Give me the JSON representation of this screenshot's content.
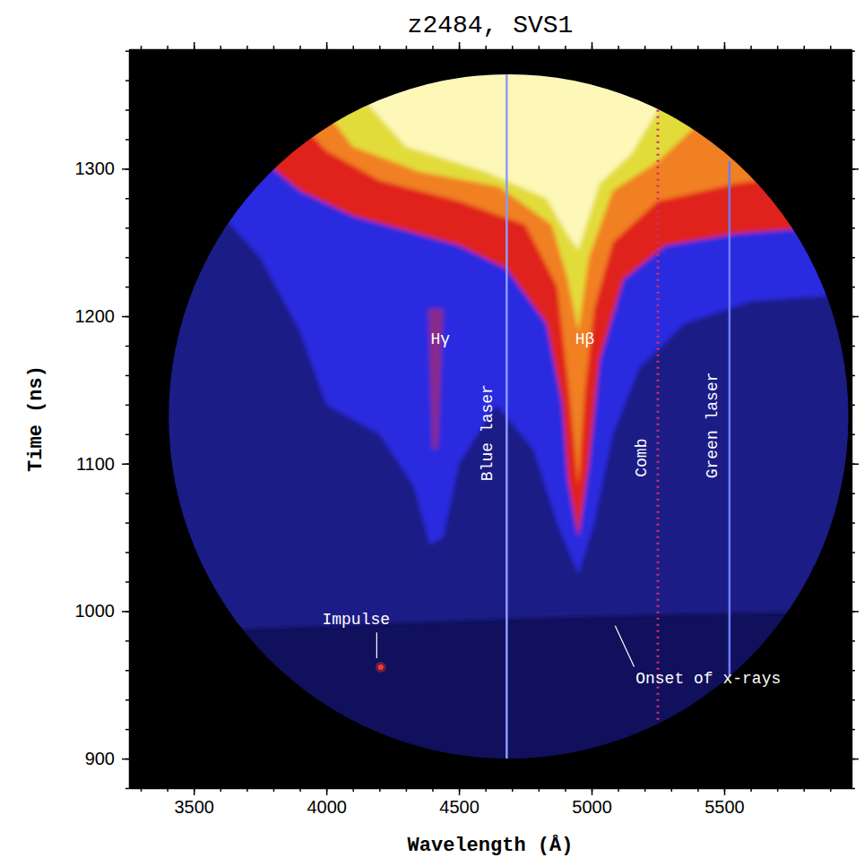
{
  "chart_data": {
    "type": "streak",
    "title": "z2484, SVS1",
    "x_label": "Wavelength (Å)",
    "y_label": "Time (ns)",
    "xlim": [
      3256,
      5980
    ],
    "ylim": [
      880,
      1381
    ],
    "xticks": [
      3500,
      4000,
      4500,
      5000,
      5500
    ],
    "yticks": [
      900,
      1000,
      1100,
      1200,
      1300
    ],
    "xticks_minor": [
      3300,
      3400,
      3500,
      3600,
      3700,
      3800,
      3900,
      4000,
      4100,
      4200,
      4300,
      4400,
      4500,
      4600,
      4700,
      4800,
      4900,
      5000,
      5100,
      5200,
      5300,
      5400,
      5500,
      5600,
      5700,
      5800,
      5900
    ],
    "yticks_minor": [
      880,
      900,
      920,
      940,
      960,
      980,
      1000,
      1020,
      1040,
      1060,
      1080,
      1100,
      1120,
      1140,
      1160,
      1180,
      1200,
      1220,
      1240,
      1260,
      1280,
      1300,
      1320,
      1340,
      1360,
      1380
    ],
    "aperture": {
      "center": [
        4687,
        1132
      ],
      "radius": [
        1281,
        232
      ],
      "color": "#10105c"
    },
    "regions": [
      {
        "color": "#1b1b86",
        "x": [
          3256,
          4000,
          4700,
          5300,
          5980,
          5980,
          3256
        ],
        "y": [
          985,
          990,
          995,
          998,
          1000,
          1381,
          1381
        ]
      },
      {
        "color": "#2a2ae0",
        "x": [
          4950,
          5010,
          5080,
          5180,
          5350,
          5600,
          5980,
          5980,
          3256,
          3256,
          3550,
          3750,
          3900,
          4000,
          4200,
          4330,
          4390,
          4440,
          4500,
          4640,
          4780,
          4870
        ],
        "y": [
          1025,
          1060,
          1120,
          1165,
          1195,
          1210,
          1215,
          1381,
          1381,
          1310,
          1280,
          1240,
          1190,
          1140,
          1120,
          1085,
          1045,
          1050,
          1100,
          1140,
          1110,
          1060
        ]
      },
      {
        "color": "#8a2a8a",
        "x": [
          4385,
          4400,
          4420,
          4440
        ],
        "y": [
          1205,
          1110,
          1110,
          1205
        ]
      },
      {
        "color": "#e0241c",
        "x": [
          4950,
          4990,
          5030,
          5120,
          5280,
          5550,
          5980,
          5980,
          3256,
          3256,
          3700,
          3900,
          4100,
          4300,
          4500,
          4680,
          4830,
          4890,
          4910
        ],
        "y": [
          1050,
          1100,
          1170,
          1225,
          1248,
          1256,
          1262,
          1381,
          1381,
          1345,
          1315,
          1285,
          1268,
          1258,
          1248,
          1232,
          1195,
          1140,
          1090
        ]
      },
      {
        "color": "#f08020",
        "x": [
          4950,
          4975,
          5010,
          5080,
          5250,
          5550,
          5980,
          5980,
          3600,
          3800,
          4000,
          4200,
          4500,
          4750,
          4870,
          4915
        ],
        "y": [
          1085,
          1150,
          1205,
          1250,
          1278,
          1290,
          1300,
          1381,
          1381,
          1350,
          1312,
          1292,
          1278,
          1262,
          1220,
          1150
        ]
      },
      {
        "color": "#e2dc3a",
        "x": [
          4950,
          4990,
          5080,
          5250,
          5400,
          5450,
          3900,
          3950,
          4100,
          4350,
          4650,
          4850,
          4910
        ],
        "y": [
          1190,
          1240,
          1285,
          1305,
          1330,
          1381,
          1381,
          1350,
          1315,
          1298,
          1288,
          1262,
          1225
        ]
      },
      {
        "color": "#fdf8b8",
        "x": [
          4950,
          5030,
          5150,
          5250,
          5300,
          4100,
          4150,
          4300,
          4600,
          4830,
          4910
        ],
        "y": [
          1245,
          1290,
          1310,
          1340,
          1381,
          1381,
          1345,
          1315,
          1298,
          1280,
          1255
        ]
      }
    ],
    "lines": [
      {
        "name": "Blue laser",
        "x": 4680,
        "y": [
          898,
          1368
        ],
        "color": "#8a9cff",
        "line_style": "solid",
        "label_x": 4609,
        "label_y": 1121
      },
      {
        "name": "Comb",
        "x": 5250,
        "y": [
          922,
          1352
        ],
        "color": "#d0306a",
        "line_style": "dotted",
        "label_x": 5189,
        "label_y": 1104
      },
      {
        "name": "Green laser",
        "x": 5520,
        "y": [
          935,
          1305
        ],
        "color": "#6d7dff",
        "line_style": "solid",
        "label_x": 5457,
        "label_y": 1126
      }
    ],
    "points": [
      {
        "x": 4205,
        "y": 962,
        "color": "#ff3a2a"
      }
    ],
    "annotations": [
      {
        "text": "Hγ",
        "x": 4430,
        "y": 1184
      },
      {
        "text": "Hβ",
        "x": 4975,
        "y": 1184
      },
      {
        "text": "Impulse",
        "x": 4112,
        "y": 994,
        "target": [
          4190,
          968
        ]
      },
      {
        "text": "Onset of x-rays",
        "x": 5440,
        "y": 954,
        "target": [
          5089,
          990
        ]
      }
    ]
  }
}
